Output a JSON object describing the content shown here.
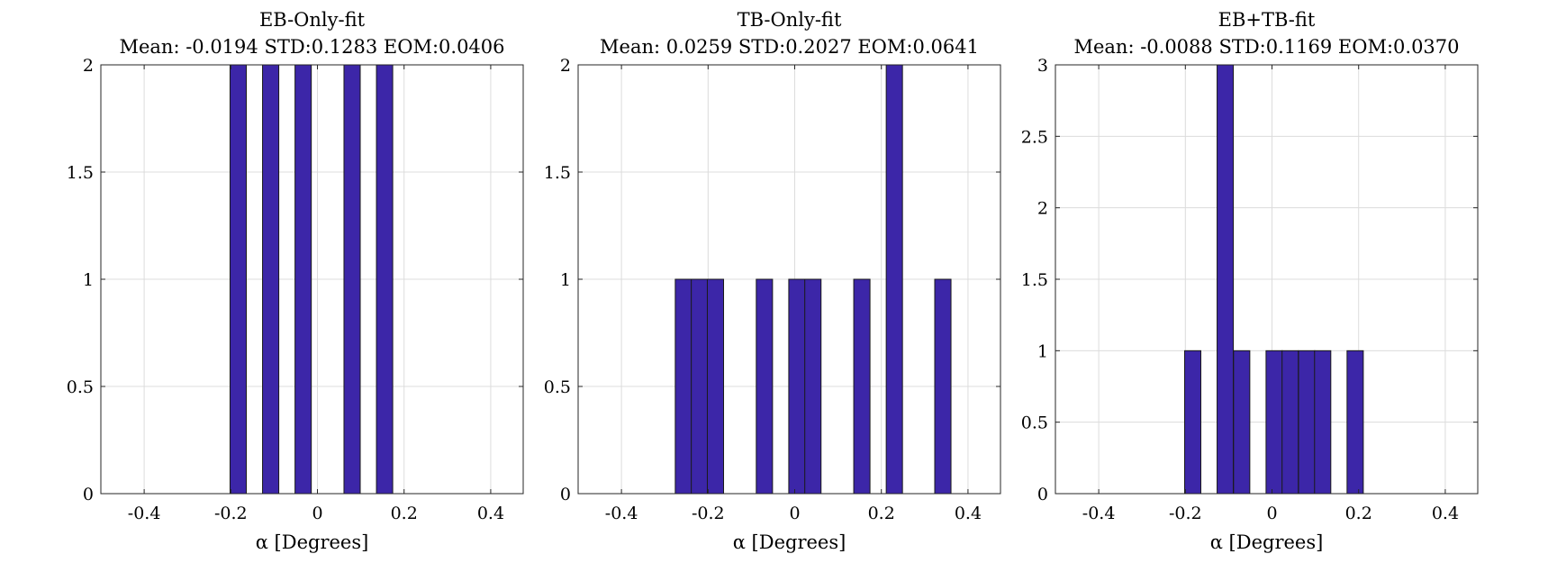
{
  "style": {
    "bar_color": "#3c26a8",
    "grid": true
  },
  "chart_data": [
    {
      "type": "bar",
      "title": "EB-Only-fit",
      "subtitle": "Mean: -0.0194 STD:0.1283 EOM:0.0406",
      "xlabel": "α [Degrees]",
      "ylabel": "",
      "xlim": [
        -0.5,
        0.475
      ],
      "ylim": [
        0,
        2
      ],
      "xticks": [
        -0.4,
        -0.2,
        0,
        0.2,
        0.4
      ],
      "xtick_labels": [
        "-0.4",
        "-0.2",
        "0",
        "0.2",
        "0.4"
      ],
      "yticks": [
        0,
        0.5,
        1,
        1.5,
        2
      ],
      "ytick_labels": [
        "0",
        "0.5",
        "1",
        "1.5",
        "2"
      ],
      "bin_width": 0.0375,
      "bars": [
        {
          "x": -0.183,
          "value": 2
        },
        {
          "x": -0.108,
          "value": 2
        },
        {
          "x": -0.033,
          "value": 2
        },
        {
          "x": 0.08,
          "value": 2
        },
        {
          "x": 0.155,
          "value": 2
        }
      ]
    },
    {
      "type": "bar",
      "title": "TB-Only-fit",
      "subtitle": "Mean: 0.0259 STD:0.2027 EOM:0.0641",
      "xlabel": "α [Degrees]",
      "ylabel": "",
      "xlim": [
        -0.5,
        0.475
      ],
      "ylim": [
        0,
        2
      ],
      "xticks": [
        -0.4,
        -0.2,
        0,
        0.2,
        0.4
      ],
      "xtick_labels": [
        "-0.4",
        "-0.2",
        "0",
        "0.2",
        "0.4"
      ],
      "yticks": [
        0,
        0.5,
        1,
        1.5,
        2
      ],
      "ytick_labels": [
        "0",
        "0.5",
        "1",
        "1.5",
        "2"
      ],
      "bin_width": 0.0375,
      "bars": [
        {
          "x": -0.257,
          "value": 1
        },
        {
          "x": -0.22,
          "value": 1
        },
        {
          "x": -0.183,
          "value": 1
        },
        {
          "x": -0.07,
          "value": 1
        },
        {
          "x": 0.005,
          "value": 1
        },
        {
          "x": 0.042,
          "value": 1
        },
        {
          "x": 0.155,
          "value": 1
        },
        {
          "x": 0.23,
          "value": 2
        },
        {
          "x": 0.342,
          "value": 1
        }
      ]
    },
    {
      "type": "bar",
      "title": "EB+TB-fit",
      "subtitle": "Mean: -0.0088 STD:0.1169 EOM:0.0370",
      "xlabel": "α [Degrees]",
      "ylabel": "",
      "xlim": [
        -0.5,
        0.475
      ],
      "ylim": [
        0,
        3
      ],
      "xticks": [
        -0.4,
        -0.2,
        0,
        0.2,
        0.4
      ],
      "xtick_labels": [
        "-0.4",
        "-0.2",
        "0",
        "0.2",
        "0.4"
      ],
      "yticks": [
        0,
        0.5,
        1,
        1.5,
        2,
        2.5,
        3
      ],
      "ytick_labels": [
        "0",
        "0.5",
        "1",
        "1.5",
        "2",
        "2.5",
        "3"
      ],
      "bin_width": 0.0375,
      "bars": [
        {
          "x": -0.183,
          "value": 1
        },
        {
          "x": -0.108,
          "value": 3
        },
        {
          "x": -0.07,
          "value": 1
        },
        {
          "x": 0.005,
          "value": 1
        },
        {
          "x": 0.042,
          "value": 1
        },
        {
          "x": 0.08,
          "value": 1
        },
        {
          "x": 0.117,
          "value": 1
        },
        {
          "x": 0.192,
          "value": 1
        }
      ]
    }
  ]
}
